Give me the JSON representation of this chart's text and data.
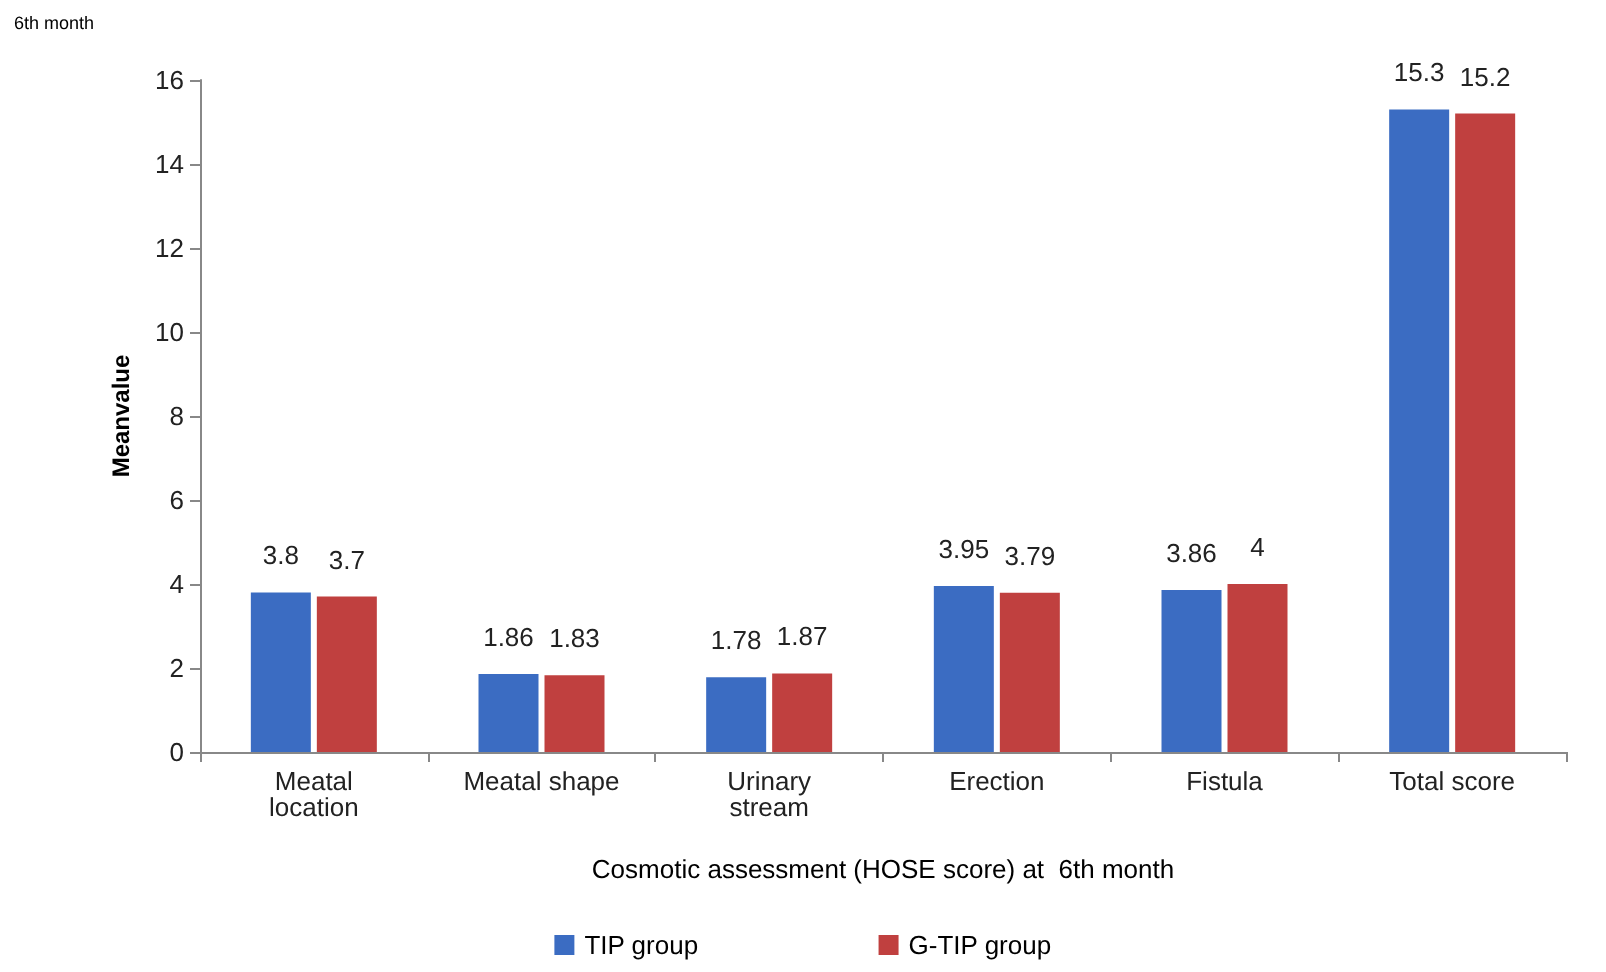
{
  "chart_data": {
    "type": "bar",
    "title": "6th month",
    "xlabel": "Cosmotic assessment (HOSE score) at  6th month",
    "ylabel": "Meanvalue",
    "categories": [
      "Meatal\nlocation",
      "Meatal shape",
      "Urinary\nstream",
      "Erection",
      "Fistula",
      "Total score"
    ],
    "series": [
      {
        "name": "TIP group",
        "color": "#3b6cc2",
        "values": [
          3.8,
          1.86,
          1.78,
          3.95,
          3.86,
          15.3
        ]
      },
      {
        "name": "G-TIP group",
        "color": "#c0403f",
        "values": [
          3.7,
          1.83,
          1.87,
          3.79,
          4,
          15.2
        ]
      }
    ],
    "ylim": [
      0,
      16
    ],
    "yticks": [
      0,
      2,
      4,
      6,
      8,
      10,
      12,
      14,
      16
    ],
    "data_labels": true,
    "legend": "bottom",
    "grid": false
  }
}
